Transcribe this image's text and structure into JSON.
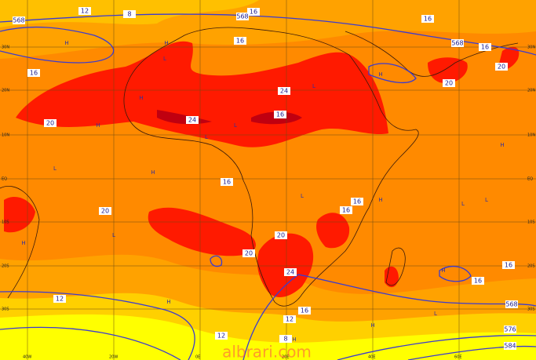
{
  "map": {
    "watermark": "albrari.com",
    "lat_labels": [
      "30N",
      "20N",
      "10N",
      "EQ",
      "10S",
      "20S",
      "30S"
    ],
    "lon_labels": [
      "40W",
      "20W",
      "0E",
      "20E",
      "40E",
      "60E"
    ],
    "contour_labels": [
      "12",
      "8",
      "568",
      "16",
      "568",
      "16",
      "16",
      "568",
      "16",
      "16",
      "20",
      "20",
      "20",
      "24",
      "24",
      "16",
      "16",
      "20",
      "16",
      "16",
      "20",
      "20",
      "24",
      "16",
      "16",
      "12",
      "12",
      "16",
      "12",
      "8",
      "568",
      "576",
      "584"
    ],
    "pressure_centers": [
      "H",
      "H",
      "L",
      "H",
      "L",
      "H",
      "L",
      "H",
      "L",
      "H",
      "L",
      "H",
      "L",
      "H",
      "L",
      "H",
      "L",
      "H",
      "L",
      "H",
      "L",
      "H",
      "H"
    ]
  }
}
